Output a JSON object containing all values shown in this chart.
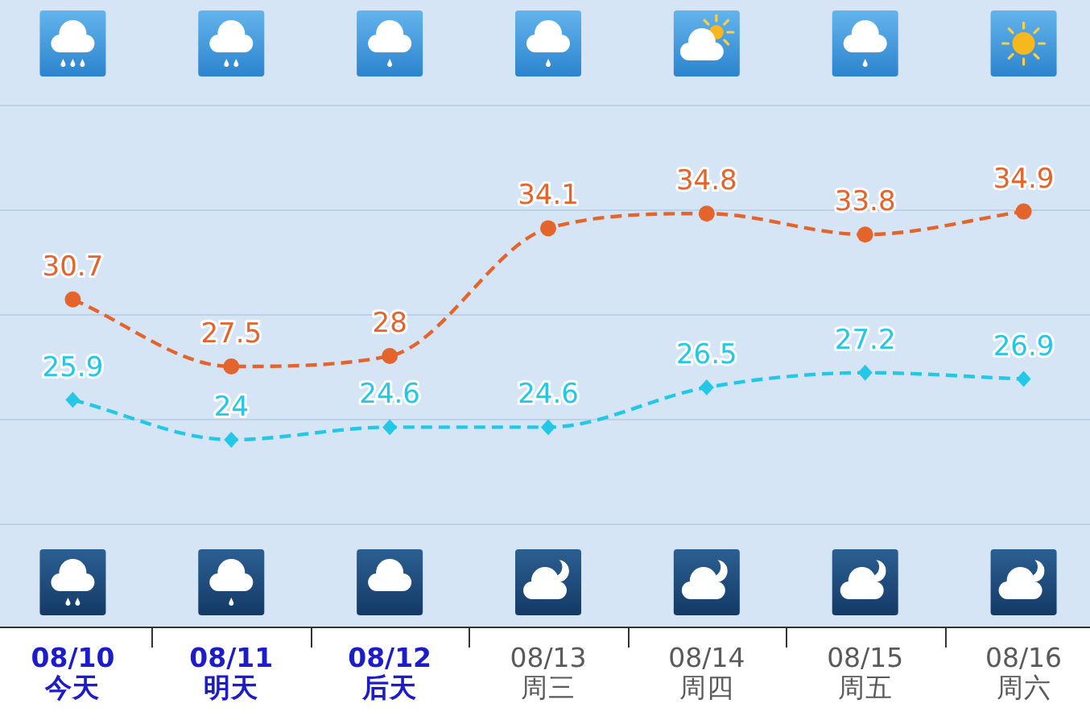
{
  "chart_data": {
    "type": "line",
    "categories": [
      "08/10\n今天",
      "08/11\n明天",
      "08/12\n后天",
      "08/13\n周三",
      "08/14\n周四",
      "08/15\n周五",
      "08/16\n周六"
    ],
    "series": [
      {
        "color": "#e4652c",
        "marker": "circle",
        "values": [
          30.7,
          27.5,
          28,
          34.1,
          34.8,
          33.8,
          34.9
        ]
      },
      {
        "color": "#22c8e6",
        "marker": "diamond",
        "values": [
          25.9,
          24,
          24.6,
          24.6,
          26.5,
          27.2,
          26.9
        ]
      }
    ],
    "ylim": [
      15,
      45
    ],
    "yticks": [
      {
        "value": 20,
        "label": null
      },
      {
        "value": 25,
        "label": null
      },
      {
        "value": 30,
        "label": null
      },
      {
        "value": 35,
        "label": null
      },
      {
        "value": 40,
        "label": null
      }
    ],
    "grid": "y",
    "tick_labels": "x",
    "data_labels": true,
    "line_style": "dashed"
  }
}
